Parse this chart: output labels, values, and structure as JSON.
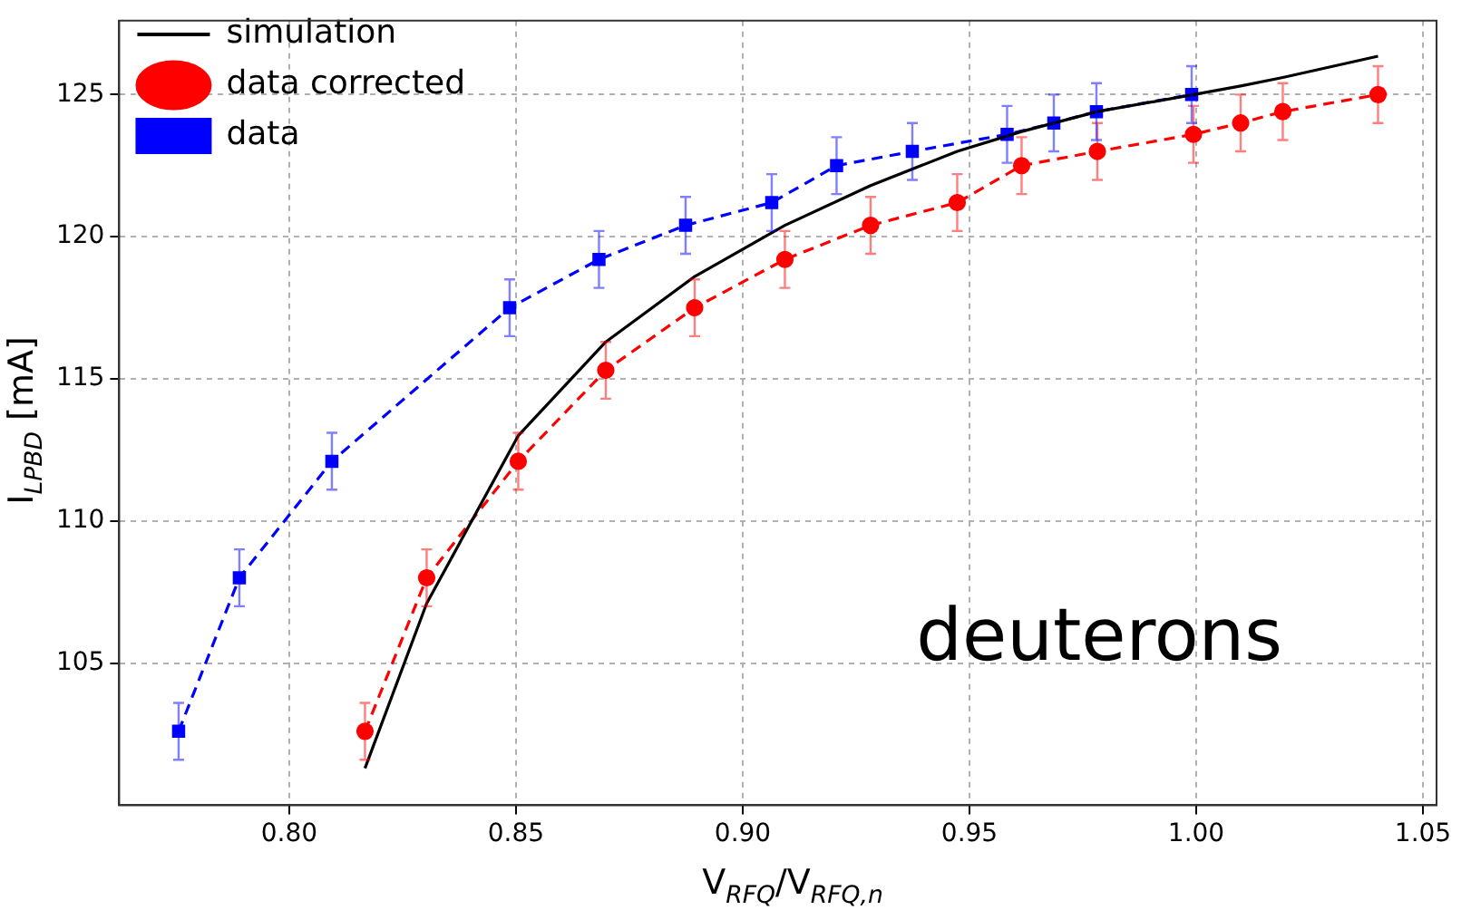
{
  "chart_data": {
    "type": "line",
    "xlabel": "V$_{RFQ}$/V$_{RFQ,n}$",
    "ylabel": "I$_{LPBD}$ [mA]",
    "annotations": [
      "deuterons"
    ],
    "xlim": [
      0.7625,
      1.053
    ],
    "ylim": [
      100.0,
      127.6
    ],
    "xticks": [
      {
        "value": 0.8,
        "label": "0.80"
      },
      {
        "value": 0.85,
        "label": "0.85"
      },
      {
        "value": 0.9,
        "label": "0.90"
      },
      {
        "value": 0.95,
        "label": "0.95"
      },
      {
        "value": 1.0,
        "label": "1.00"
      },
      {
        "value": 1.05,
        "label": "1.05"
      }
    ],
    "yticks": [
      105,
      110,
      115,
      120,
      125
    ],
    "grid": true,
    "legend": "top left",
    "series": [
      {
        "name": "simulation",
        "color": "#000000",
        "marker": "none",
        "line_style": "solid",
        "x": [
          0.8167,
          0.8303,
          0.8505,
          0.8698,
          0.8894,
          0.9093,
          0.9282,
          0.9473,
          0.9615,
          0.9782,
          0.9994,
          1.0098,
          1.0191,
          1.0401
        ],
        "values": [
          101.3,
          107.1,
          113.0,
          116.3,
          118.6,
          120.4,
          121.8,
          123.0,
          123.7,
          124.4,
          125.0,
          125.3,
          125.6,
          126.35
        ]
      },
      {
        "name": "data corrected",
        "color": "#ff0000",
        "marker": "circle",
        "line_style": "dashed",
        "x": [
          0.8167,
          0.8303,
          0.8505,
          0.8698,
          0.8894,
          0.9093,
          0.9282,
          0.9473,
          0.9615,
          0.9782,
          0.9994,
          1.0098,
          1.0191,
          1.0401
        ],
        "values": [
          102.6,
          108.0,
          112.1,
          115.3,
          117.5,
          119.2,
          120.4,
          121.2,
          122.5,
          123.0,
          123.6,
          124.0,
          124.4,
          125.0
        ],
        "errors": [
          1,
          1,
          1,
          1,
          1,
          1,
          1,
          1,
          1,
          1,
          1,
          1,
          1,
          1
        ]
      },
      {
        "name": "data",
        "color": "#0000ff",
        "marker": "square",
        "line_style": "dashed",
        "x": [
          0.7756,
          0.789,
          0.8094,
          0.8486,
          0.8683,
          0.8874,
          0.9064,
          0.9207,
          0.9374,
          0.9583,
          0.9686,
          0.978,
          0.999
        ],
        "values": [
          102.6,
          108.0,
          112.1,
          117.5,
          119.2,
          120.4,
          121.2,
          122.5,
          123.0,
          123.6,
          124.0,
          124.4,
          125.0
        ],
        "errors": [
          1,
          1,
          1,
          1,
          1,
          1,
          1,
          1,
          1,
          1,
          1,
          1,
          1
        ]
      }
    ]
  }
}
